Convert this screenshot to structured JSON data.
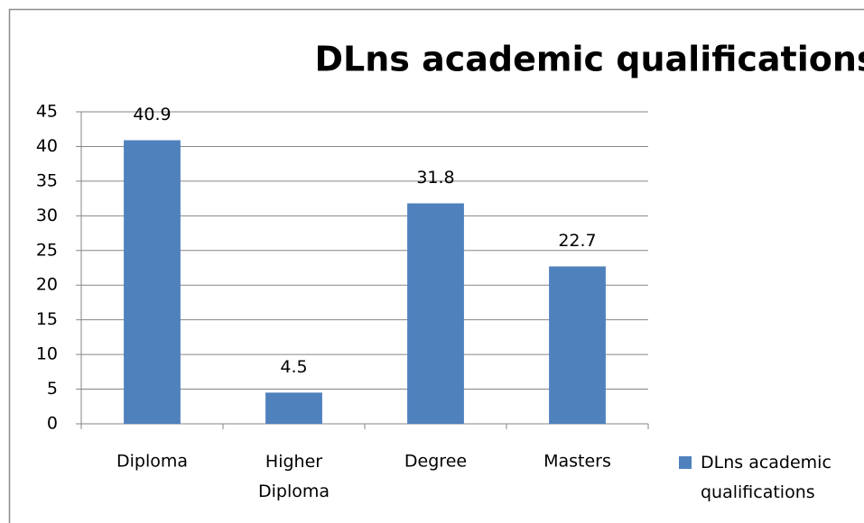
{
  "chart_data": {
    "type": "bar",
    "title": "DLns academic qualifications",
    "categories": [
      "Diploma",
      "Higher Diploma",
      "Degree",
      "Masters"
    ],
    "series": [
      {
        "name": "DLns academic qualifications",
        "color": "#4f81bd",
        "values": [
          40.9,
          4.5,
          31.8,
          22.7
        ]
      }
    ],
    "ylim": [
      0,
      45
    ],
    "yticks": [
      0,
      5,
      10,
      15,
      20,
      25,
      30,
      35,
      40,
      45
    ],
    "grid": true,
    "legend": "right"
  }
}
